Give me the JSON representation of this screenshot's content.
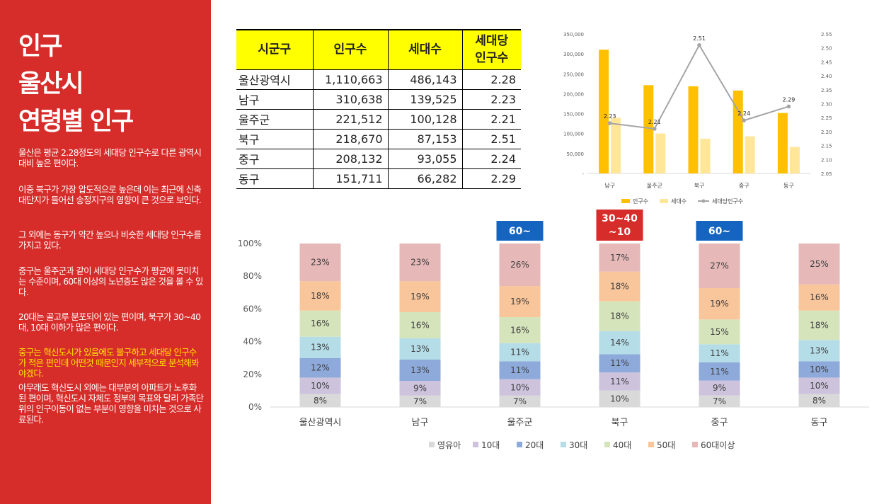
{
  "panel": {
    "title_lines": [
      "인구",
      "울산시",
      "연령별 인구"
    ],
    "paragraphs": [
      {
        "text": "울산은 평균 2.28정도의 세대당 인구수로 다른 광역시 대비 높은 편이다.",
        "highlight": false
      },
      {
        "text": "이중 북구가 가장 압도적으로 높은데 이는 최근에 신축대단지가 들어선 송정지구의 영향이 큰 것으로 보인다.",
        "highlight": false
      },
      {
        "text": "그 외에는 동구가 약간 높으나 비슷한 세대당 인구수를 가지고 있다.",
        "highlight": false
      },
      {
        "text": "중구는 울주군과 같이 세대당 인구수가 평균에 못미치는 수준이며, 60대 이상의 노년층도 많은 것을 볼 수 있다.",
        "highlight": false
      },
      {
        "text": "20대는 골고루 분포되어 있는 편이며, 북구가 30~40대, 10대 이하가 많은 편이다.",
        "highlight": false
      },
      {
        "text": "중구는 혁신도시가 있음에도 불구하고 세대당 인구수가 적은 편인데 어떤것 때문인지 세부적으로 분석해봐야겠다.",
        "highlight": true
      },
      {
        "text": "아무래도 혁신도시 외에는 대부분의 아파트가 노후화 된 편이며, 혁신도시 자체도 정부의 목표와 달리 가족단위의 인구이동이 없는 부분이 영향을 미치는 것으로 사료된다.",
        "highlight": false
      }
    ]
  },
  "table": {
    "headers": [
      "시군구",
      "인구수",
      "세대수",
      "세대당\n인구수"
    ],
    "rows": [
      [
        "울산광역시",
        "1,110,663",
        "486,143",
        "2.28"
      ],
      [
        "남구",
        "310,638",
        "139,525",
        "2.23"
      ],
      [
        "울주군",
        "221,512",
        "100,128",
        "2.21"
      ],
      [
        "북구",
        "218,670",
        "87,153",
        "2.51"
      ],
      [
        "중구",
        "208,132",
        "93,055",
        "2.24"
      ],
      [
        "동구",
        "151,711",
        "66,282",
        "2.29"
      ]
    ]
  },
  "chart_data": [
    {
      "type": "bar",
      "categories": [
        "남구",
        "울주군",
        "북구",
        "중구",
        "동구"
      ],
      "series": [
        {
          "name": "인구수",
          "type": "bar",
          "axis": "left",
          "color": "#ffc000",
          "values": [
            310638,
            221512,
            218670,
            208132,
            151711
          ]
        },
        {
          "name": "세대수",
          "type": "bar",
          "axis": "left",
          "color": "#ffe699",
          "values": [
            139525,
            100128,
            87153,
            93055,
            66282
          ]
        },
        {
          "name": "세대당인구수",
          "type": "line",
          "axis": "right",
          "color": "#a5a5a5",
          "values": [
            2.23,
            2.21,
            2.51,
            2.24,
            2.29
          ],
          "labels": [
            "2.23",
            "2.21",
            "2.51",
            "2.24",
            "2.29"
          ]
        }
      ],
      "y_left": {
        "min": 0,
        "max": 350000,
        "step": 50000,
        "ticks": [
          "-",
          "50,000",
          "100,000",
          "150,000",
          "200,000",
          "250,000",
          "300,000",
          "350,000"
        ]
      },
      "y_right": {
        "min": 2.05,
        "max": 2.55,
        "step": 0.05,
        "ticks": [
          "2.05",
          "2.10",
          "2.15",
          "2.20",
          "2.25",
          "2.30",
          "2.35",
          "2.40",
          "2.45",
          "2.50",
          "2.55"
        ]
      },
      "legend_position": "bottom",
      "grid": false
    },
    {
      "type": "bar",
      "stacked": true,
      "percent": true,
      "categories": [
        "울산광역시",
        "남구",
        "울주군",
        "북구",
        "중구",
        "동구"
      ],
      "series": [
        {
          "name": "영유아",
          "color": "#d9d9d9",
          "values": [
            8,
            7,
            7,
            10,
            7,
            8
          ]
        },
        {
          "name": "10대",
          "color": "#cdc3dd",
          "values": [
            10,
            9,
            10,
            11,
            9,
            10
          ]
        },
        {
          "name": "20대",
          "color": "#8eaadb",
          "values": [
            12,
            13,
            11,
            11,
            11,
            10
          ]
        },
        {
          "name": "30대",
          "color": "#b4dde8",
          "values": [
            13,
            13,
            11,
            14,
            11,
            13
          ]
        },
        {
          "name": "40대",
          "color": "#d6e4bc",
          "values": [
            16,
            16,
            16,
            18,
            15,
            18
          ]
        },
        {
          "name": "50대",
          "color": "#f9c59a",
          "values": [
            18,
            19,
            19,
            18,
            19,
            16
          ]
        },
        {
          "name": "60대이상",
          "color": "#e6b8b8",
          "values": [
            23,
            23,
            26,
            17,
            27,
            25
          ]
        }
      ],
      "y_ticks": [
        "0%",
        "20%",
        "40%",
        "60%",
        "80%",
        "100%"
      ],
      "annotations": [
        {
          "category": "울주군",
          "text": "60~",
          "color": "#1565c0"
        },
        {
          "category": "북구",
          "text": "30~40\n~10",
          "color": "#d62c2a"
        },
        {
          "category": "중구",
          "text": "60~",
          "color": "#1565c0"
        }
      ],
      "legend_position": "bottom",
      "grid": false
    }
  ]
}
